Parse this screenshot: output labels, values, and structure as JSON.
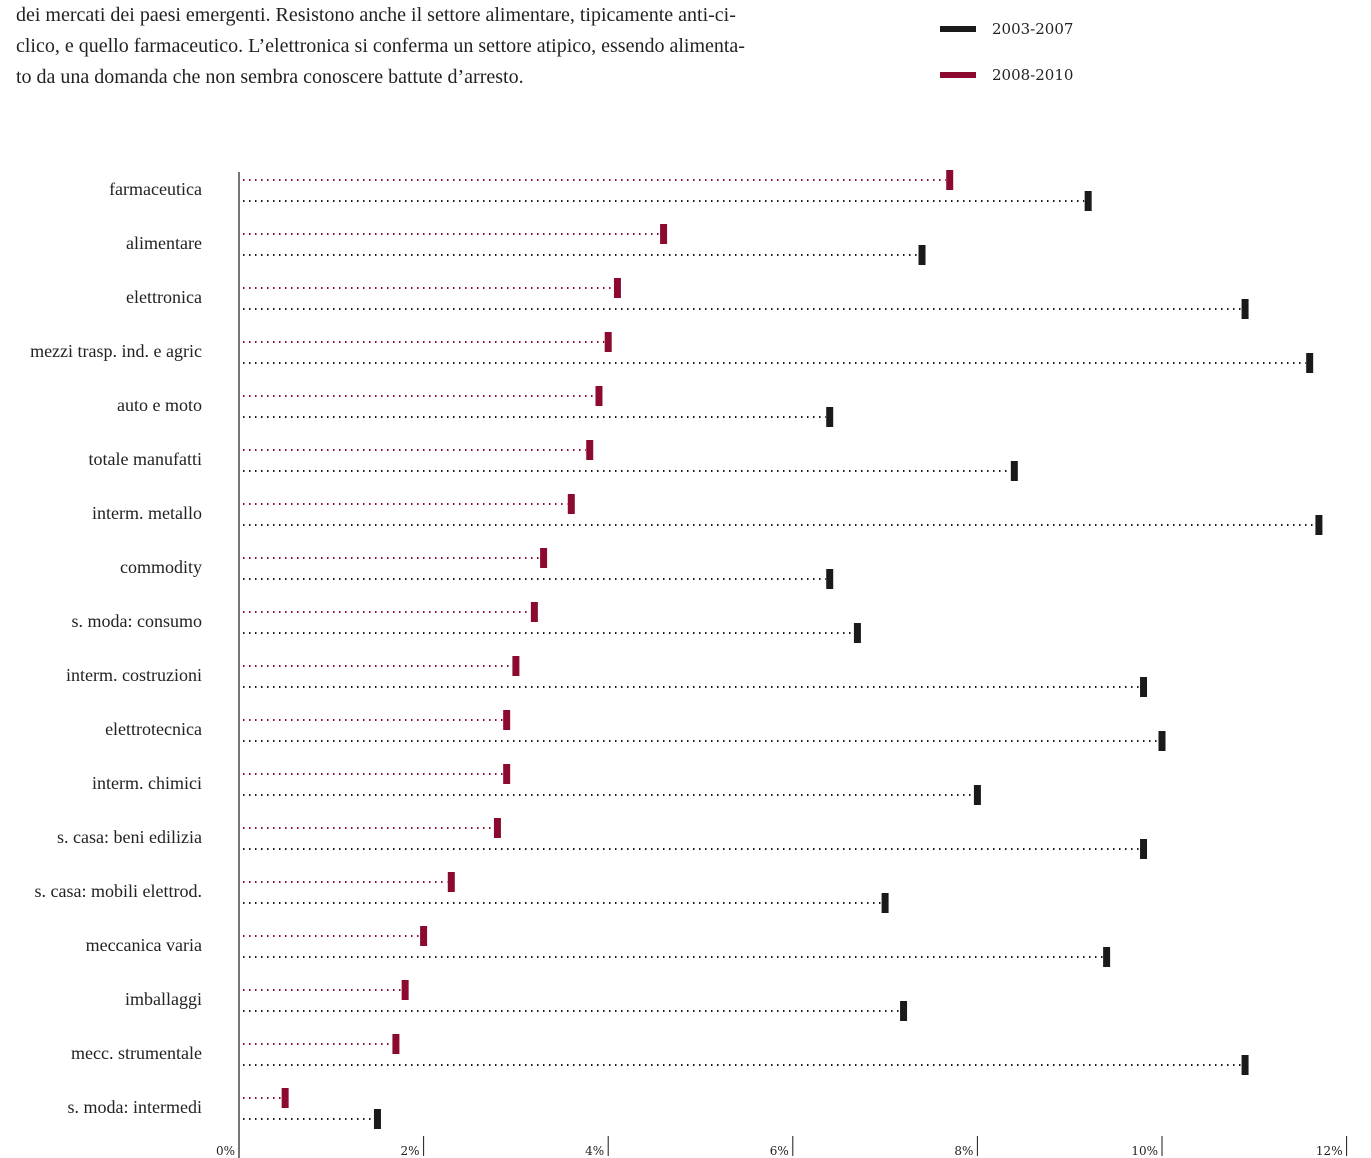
{
  "intro": {
    "lines": [
      "dei mercati dei paesi emergenti. Resistono anche il settore alimentare, tipicamente anti-ci-",
      "clico, e quello farmaceutico. L’elettronica si conferma un settore atipico, essendo alimenta-",
      "to da una domanda che non sembra conoscere battute d’arresto."
    ]
  },
  "colors": {
    "series_2003": "#1a1a1a",
    "series_2008": "#8b0a2e"
  },
  "chart_data": {
    "type": "bar",
    "orientation": "horizontal",
    "categories": [
      "farmaceutica",
      "alimentare",
      "elettronica",
      "mezzi trasp. ind. e agric",
      "auto e moto",
      "totale manufatti",
      "interm. metallo",
      "commodity",
      "s. moda: consumo",
      "interm. costruzioni",
      "elettrotecnica",
      "interm. chimici",
      "s. casa: beni edilizia",
      "s. casa: mobili elettrod.",
      "meccanica varia",
      "imballaggi",
      "mecc. strumentale",
      "s. moda: intermedi"
    ],
    "series": [
      {
        "name": "2008-2010",
        "values": [
          7.7,
          4.6,
          4.1,
          4.0,
          3.9,
          3.8,
          3.6,
          3.3,
          3.2,
          3.0,
          2.9,
          2.9,
          2.8,
          2.3,
          2.0,
          1.8,
          1.7,
          0.5
        ]
      },
      {
        "name": "2003-2007",
        "values": [
          9.2,
          7.4,
          10.9,
          11.6,
          6.4,
          8.4,
          11.7,
          6.4,
          6.7,
          9.8,
          10.0,
          8.0,
          9.8,
          7.0,
          9.4,
          7.2,
          10.9,
          1.5
        ]
      }
    ],
    "xlim": [
      0,
      12
    ],
    "xticks": [
      "0%",
      "2%",
      "4%",
      "6%",
      "8%",
      "10%",
      "12%"
    ],
    "legend": "top-right",
    "grid": false
  }
}
